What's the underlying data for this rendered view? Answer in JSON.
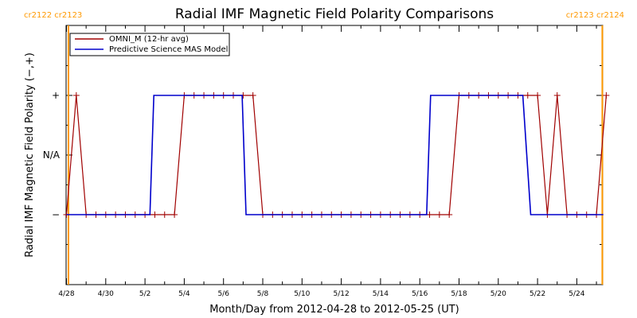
{
  "colors": {
    "omni": "#a00000",
    "model": "#0000cc",
    "carrington": "#ff9900",
    "axis": "#000000",
    "background": "#ffffff"
  },
  "chart_data": {
    "type": "line",
    "title": "Radial IMF Magnetic Field Polarity Comparisons",
    "xlabel": "Month/Day from 2012-04-28 to 2012-05-25 (UT)",
    "ylabel": "Radial IMF Magnetic Field Polarity (−,+)",
    "xlim_days": [
      0,
      27.5
    ],
    "ylim": [
      -1.5,
      1.5
    ],
    "x_ticks": [
      {
        "day": 0,
        "label": "4/28"
      },
      {
        "day": 2,
        "label": "4/30"
      },
      {
        "day": 4,
        "label": "5/2"
      },
      {
        "day": 6,
        "label": "5/4"
      },
      {
        "day": 8,
        "label": "5/6"
      },
      {
        "day": 10,
        "label": "5/8"
      },
      {
        "day": 12,
        "label": "5/10"
      },
      {
        "day": 14,
        "label": "5/12"
      },
      {
        "day": 16,
        "label": "5/14"
      },
      {
        "day": 18,
        "label": "5/16"
      },
      {
        "day": 20,
        "label": "5/18"
      },
      {
        "day": 22,
        "label": "5/20"
      },
      {
        "day": 24,
        "label": "5/22"
      },
      {
        "day": 26,
        "label": "5/24"
      }
    ],
    "y_ticks": [
      {
        "value": 1,
        "label": "+"
      },
      {
        "value": 0,
        "label": "N/A"
      },
      {
        "value": -1,
        "label": "−"
      }
    ],
    "carrington_markers": [
      {
        "day": 0.1,
        "left_label": "cr2122",
        "right_label": "cr2123",
        "side": "left"
      },
      {
        "day": 27.3,
        "left_label": "cr2123",
        "right_label": "cr2124",
        "side": "right"
      }
    ],
    "legend": {
      "placement": "top-left"
    },
    "series": [
      {
        "name": "OMNI_M (12-hr avg)",
        "marker": "plus",
        "points": [
          [
            0.0,
            -1
          ],
          [
            0.5,
            1
          ],
          [
            1.0,
            -1
          ],
          [
            1.5,
            -1
          ],
          [
            2.0,
            -1
          ],
          [
            2.5,
            -1
          ],
          [
            3.0,
            -1
          ],
          [
            3.5,
            -1
          ],
          [
            4.0,
            -1
          ],
          [
            4.5,
            -1
          ],
          [
            5.0,
            -1
          ],
          [
            5.5,
            -1
          ],
          [
            6.0,
            1
          ],
          [
            6.5,
            1
          ],
          [
            7.0,
            1
          ],
          [
            7.5,
            1
          ],
          [
            8.0,
            1
          ],
          [
            8.5,
            1
          ],
          [
            9.0,
            1
          ],
          [
            9.5,
            1
          ],
          [
            10.0,
            -1
          ],
          [
            10.5,
            -1
          ],
          [
            11.0,
            -1
          ],
          [
            11.5,
            -1
          ],
          [
            12.0,
            -1
          ],
          [
            12.5,
            -1
          ],
          [
            13.0,
            -1
          ],
          [
            13.5,
            -1
          ],
          [
            14.0,
            -1
          ],
          [
            14.5,
            -1
          ],
          [
            15.0,
            -1
          ],
          [
            15.5,
            -1
          ],
          [
            16.0,
            -1
          ],
          [
            16.5,
            -1
          ],
          [
            17.0,
            -1
          ],
          [
            17.5,
            -1
          ],
          [
            18.0,
            -1
          ],
          [
            18.5,
            -1
          ],
          [
            19.0,
            -1
          ],
          [
            19.5,
            -1
          ],
          [
            20.0,
            1
          ],
          [
            20.5,
            1
          ],
          [
            21.0,
            1
          ],
          [
            21.5,
            1
          ],
          [
            22.0,
            1
          ],
          [
            22.5,
            1
          ],
          [
            23.0,
            1
          ],
          [
            23.5,
            1
          ],
          [
            24.0,
            1
          ],
          [
            24.5,
            -1
          ],
          [
            25.0,
            1
          ],
          [
            25.5,
            -1
          ],
          [
            26.0,
            -1
          ],
          [
            26.5,
            -1
          ],
          [
            27.0,
            -1
          ],
          [
            27.5,
            1
          ]
        ]
      },
      {
        "name": "Predictive Science MAS Model",
        "marker": "none",
        "points": [
          [
            0.0,
            -1
          ],
          [
            4.25,
            -1
          ],
          [
            4.45,
            1
          ],
          [
            8.95,
            1
          ],
          [
            9.15,
            -1
          ],
          [
            18.0,
            -1
          ],
          [
            18.35,
            -1
          ],
          [
            18.55,
            1
          ],
          [
            23.25,
            1
          ],
          [
            23.65,
            -1
          ],
          [
            27.35,
            -1
          ]
        ]
      }
    ]
  }
}
